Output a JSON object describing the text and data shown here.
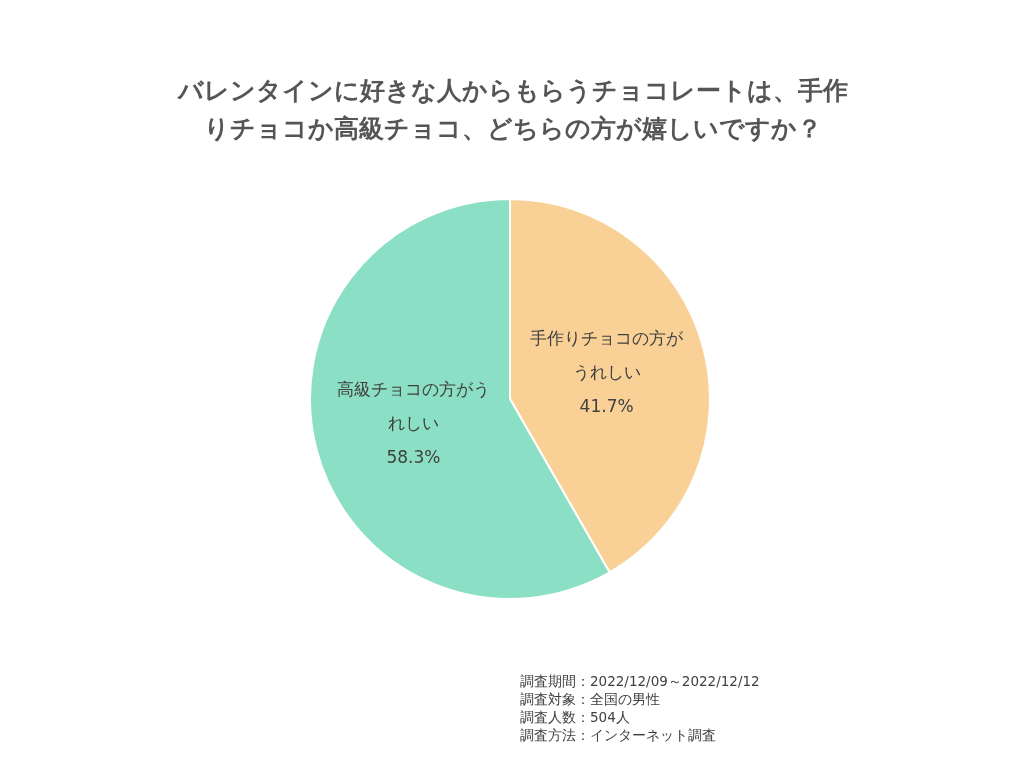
{
  "chart_data": {
    "type": "pie",
    "title": "バレンタインに好きな人からもらうチョコレートは、手作りチョコか高級チョコ、どちらの方が嬉しいですか？",
    "categories": [
      "手作りチョコの方がうれしい",
      "高級チョコの方がうれしい"
    ],
    "values": [
      41.7,
      58.3
    ],
    "colors": [
      "#f9d197",
      "#8adfc4"
    ],
    "value_labels": [
      "41.7%",
      "58.3%"
    ],
    "legend": false,
    "annotations": [
      "調査期間：2022/12/09～2022/12/12",
      "調査対象：全国の男性",
      "調査人数：504人",
      "調査方法：インターネット調査"
    ]
  }
}
